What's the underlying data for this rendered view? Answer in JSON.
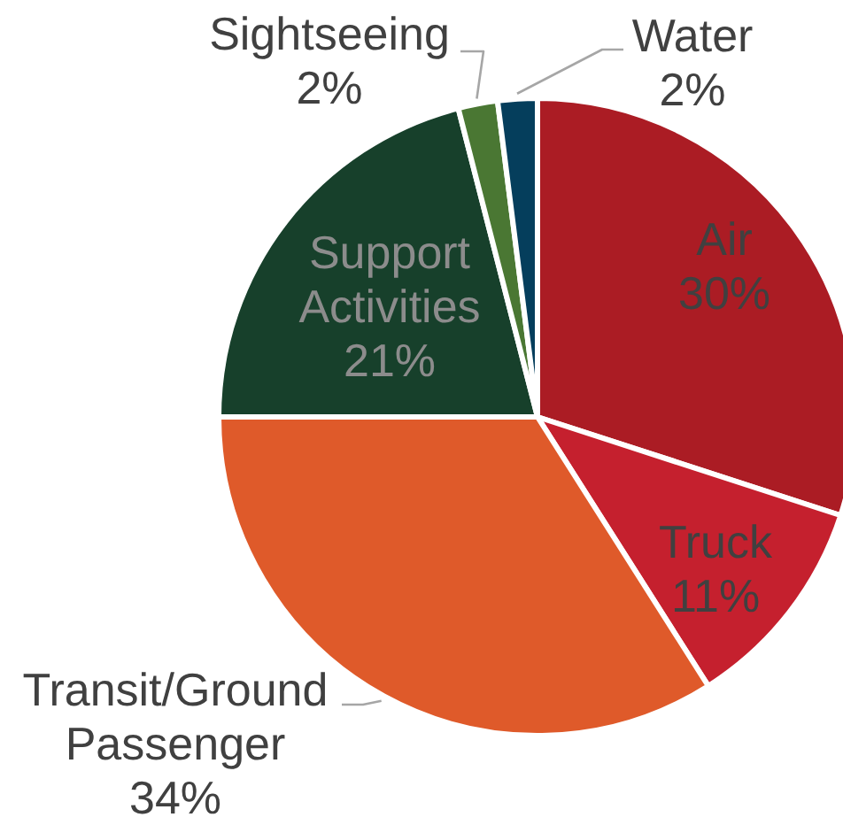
{
  "chart_data": {
    "type": "pie",
    "categories": [
      "Air",
      "Truck",
      "Transit/Ground Passenger",
      "Support Activities",
      "Sightseeing",
      "Water"
    ],
    "values": [
      30,
      11,
      34,
      21,
      2,
      2
    ],
    "colors": [
      "#ab1c24",
      "#c5202e",
      "#df5a2a",
      "#17402b",
      "#4a7733",
      "#053e5c"
    ],
    "value_labels": [
      "30%",
      "11%",
      "34%",
      "21%",
      "2%",
      "2%"
    ]
  }
}
